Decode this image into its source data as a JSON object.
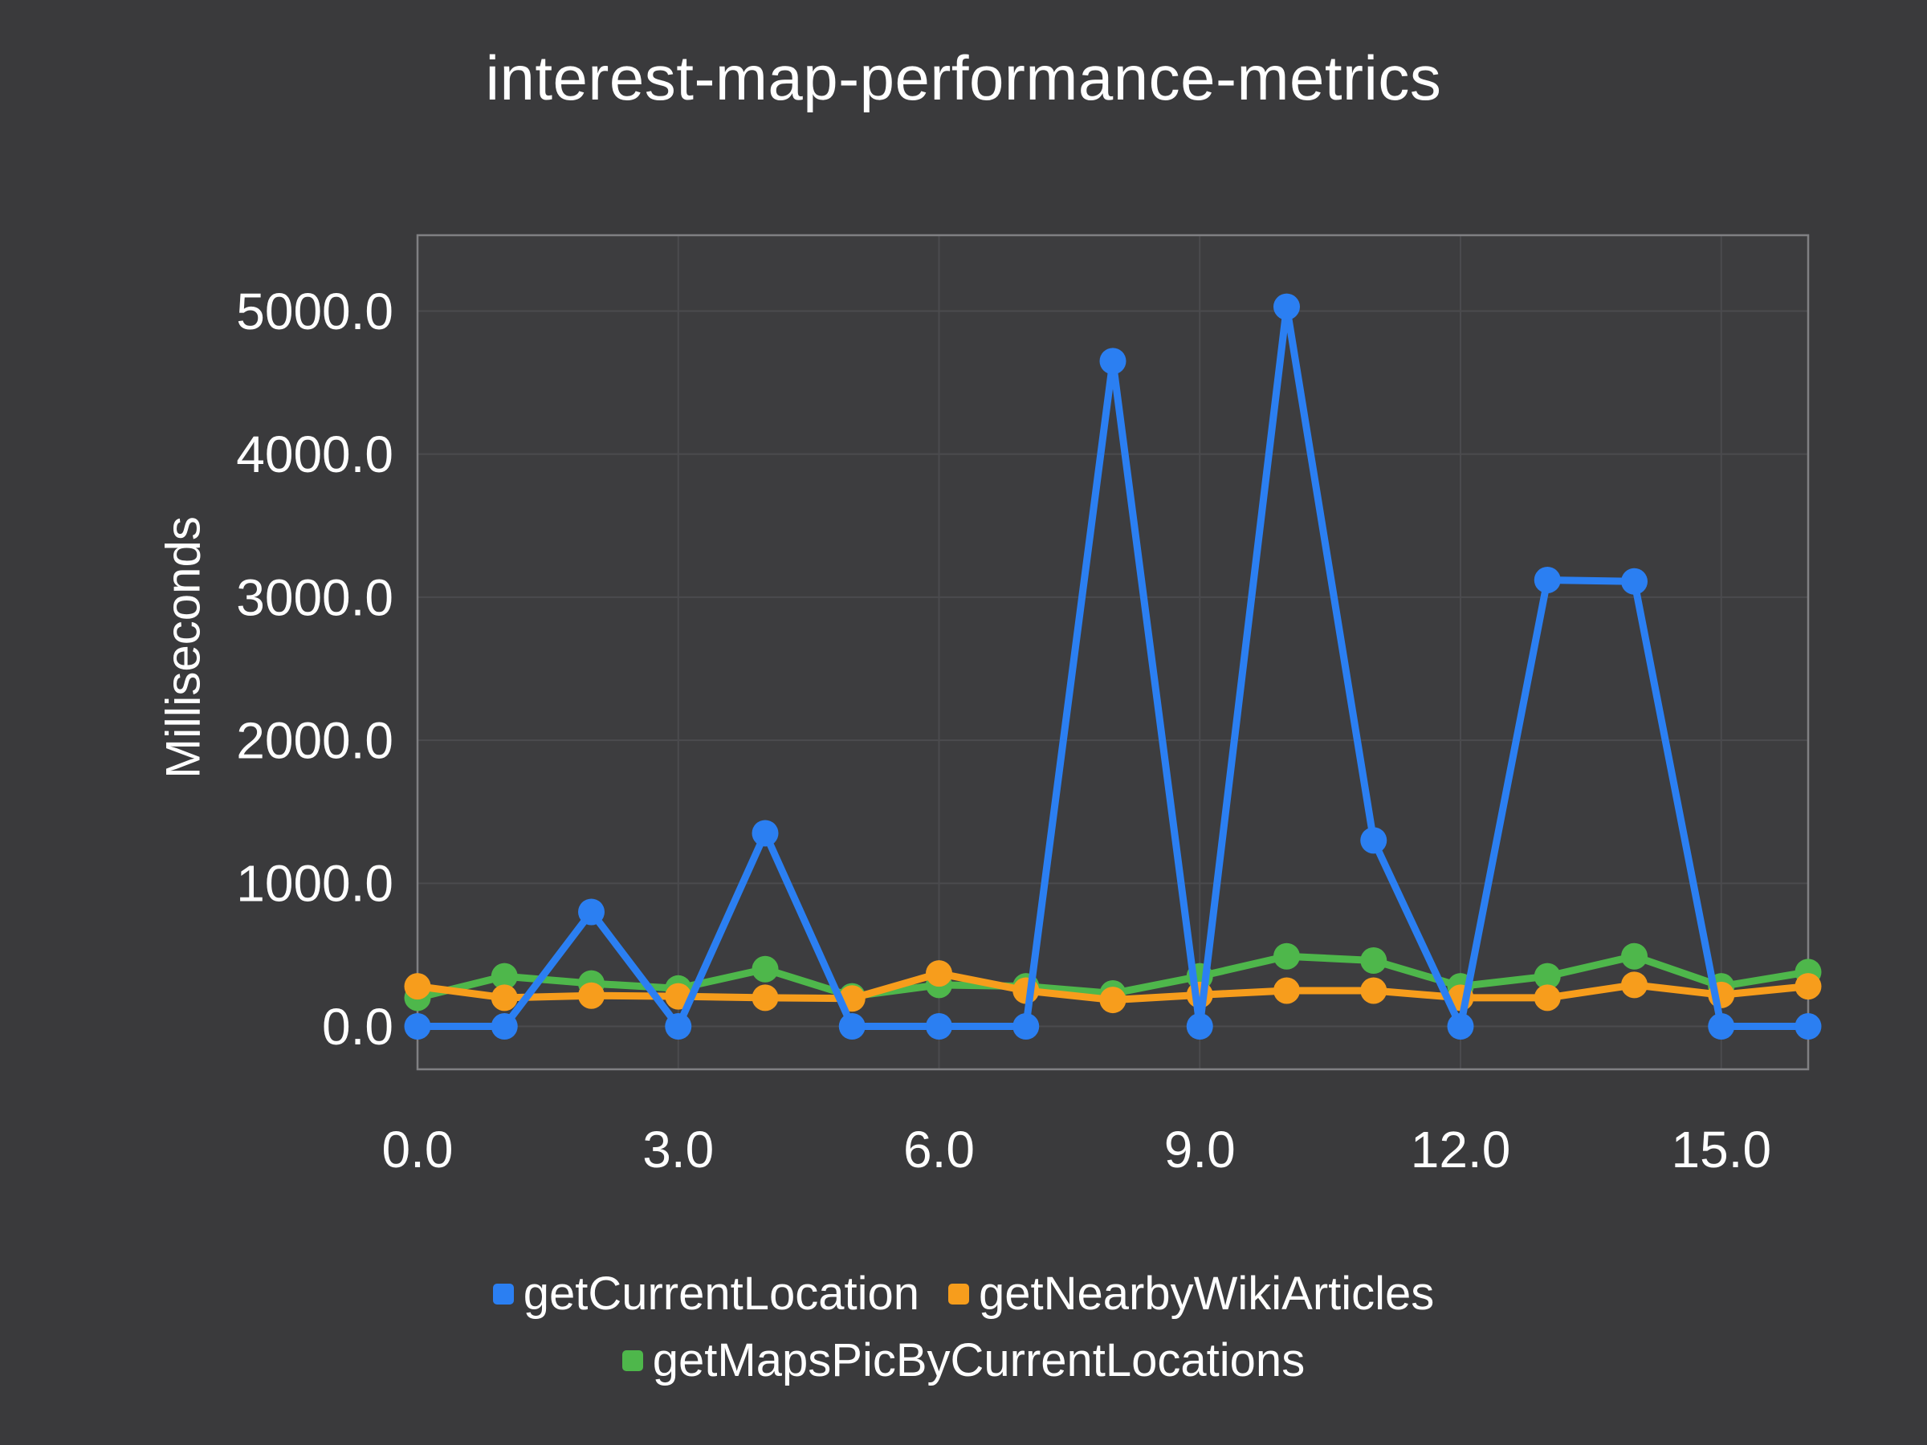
{
  "chart_data": {
    "type": "line",
    "title": "interest-map-performance-metrics",
    "xlabel": "",
    "ylabel": "Milliseconds",
    "xlim": [
      0,
      16
    ],
    "ylim": [
      -300,
      5530
    ],
    "grid": true,
    "legend_position": "bottom",
    "x_ticks": [
      {
        "value": 0,
        "label": "0.0"
      },
      {
        "value": 3,
        "label": "3.0"
      },
      {
        "value": 6,
        "label": "6.0"
      },
      {
        "value": 9,
        "label": "9.0"
      },
      {
        "value": 12,
        "label": "12.0"
      },
      {
        "value": 15,
        "label": "15.0"
      }
    ],
    "y_ticks": [
      {
        "value": 0,
        "label": "0.0"
      },
      {
        "value": 1000,
        "label": "1000.0"
      },
      {
        "value": 2000,
        "label": "2000.0"
      },
      {
        "value": 3000,
        "label": "3000.0"
      },
      {
        "value": 4000,
        "label": "4000.0"
      },
      {
        "value": 5000,
        "label": "5000.0"
      }
    ],
    "x": [
      0,
      1,
      2,
      3,
      4,
      5,
      6,
      7,
      8,
      9,
      10,
      11,
      12,
      13,
      14,
      15,
      16
    ],
    "series": [
      {
        "name": "getCurrentLocation",
        "color": "#2b7ff2",
        "values": [
          0,
          0,
          800,
          0,
          1350,
          0,
          0,
          0,
          4650,
          0,
          5030,
          1300,
          0,
          3120,
          3110,
          0,
          0
        ]
      },
      {
        "name": "getNearbyWikiArticles",
        "color": "#f79d1c",
        "values": [
          280,
          200,
          215,
          210,
          200,
          195,
          370,
          250,
          185,
          220,
          250,
          250,
          200,
          200,
          290,
          220,
          280
        ]
      },
      {
        "name": "getMapsPicByCurrentLocations",
        "color": "#4eb74b",
        "values": [
          200,
          350,
          300,
          265,
          400,
          210,
          290,
          280,
          230,
          350,
          490,
          460,
          280,
          350,
          490,
          280,
          380
        ]
      }
    ],
    "colors": {
      "background": "#3a3a3c",
      "plot_background": "#3d3d3f",
      "grid": "#4b4b4e",
      "border": "#808083",
      "text": "#ffffff"
    }
  }
}
